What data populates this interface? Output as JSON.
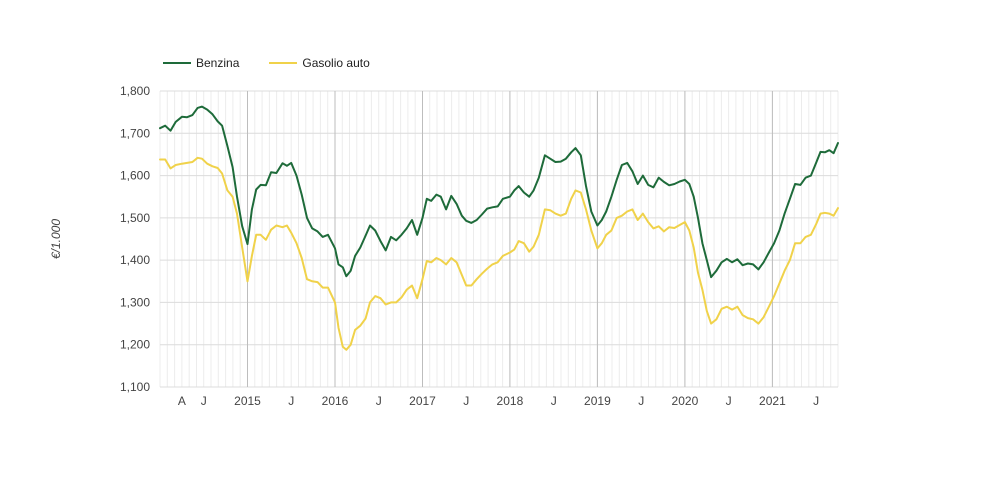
{
  "chart_data": {
    "type": "line",
    "title": "",
    "xlabel": "",
    "ylabel": "€/1.000",
    "ylim": [
      1.1,
      1.8
    ],
    "y_ticks": [
      "1,100",
      "1,200",
      "1,300",
      "1,400",
      "1,500",
      "1,600",
      "1,700",
      "1,800"
    ],
    "x_ticks": [
      {
        "label": "A",
        "x": 2014.25
      },
      {
        "label": "J",
        "x": 2014.5
      },
      {
        "label": "2015",
        "x": 2015.0
      },
      {
        "label": "J",
        "x": 2015.5
      },
      {
        "label": "2016",
        "x": 2016.0
      },
      {
        "label": "J",
        "x": 2016.5
      },
      {
        "label": "2017",
        "x": 2017.0
      },
      {
        "label": "J",
        "x": 2017.5
      },
      {
        "label": "2018",
        "x": 2018.0
      },
      {
        "label": "J",
        "x": 2018.5
      },
      {
        "label": "2019",
        "x": 2019.0
      },
      {
        "label": "J",
        "x": 2019.5
      },
      {
        "label": "2020",
        "x": 2020.0
      },
      {
        "label": "J",
        "x": 2020.5
      },
      {
        "label": "2021",
        "x": 2021.0
      },
      {
        "label": "J",
        "x": 2021.5
      }
    ],
    "xlim": [
      2014.0,
      2021.75
    ],
    "grid": true,
    "legend_position": "top-left",
    "series": [
      {
        "name": "Benzina",
        "color": "#1e6b3a",
        "points": [
          [
            2014.0,
            1.712
          ],
          [
            2014.06,
            1.718
          ],
          [
            2014.12,
            1.706
          ],
          [
            2014.18,
            1.727
          ],
          [
            2014.25,
            1.739
          ],
          [
            2014.31,
            1.738
          ],
          [
            2014.37,
            1.743
          ],
          [
            2014.43,
            1.76
          ],
          [
            2014.48,
            1.763
          ],
          [
            2014.54,
            1.756
          ],
          [
            2014.6,
            1.745
          ],
          [
            2014.66,
            1.728
          ],
          [
            2014.71,
            1.718
          ],
          [
            2014.77,
            1.67
          ],
          [
            2014.83,
            1.62
          ],
          [
            2014.88,
            1.55
          ],
          [
            2014.94,
            1.48
          ],
          [
            2015.0,
            1.438
          ],
          [
            2015.05,
            1.52
          ],
          [
            2015.1,
            1.567
          ],
          [
            2015.15,
            1.578
          ],
          [
            2015.21,
            1.577
          ],
          [
            2015.27,
            1.608
          ],
          [
            2015.33,
            1.606
          ],
          [
            2015.4,
            1.629
          ],
          [
            2015.45,
            1.623
          ],
          [
            2015.5,
            1.63
          ],
          [
            2015.56,
            1.6
          ],
          [
            2015.62,
            1.555
          ],
          [
            2015.68,
            1.5
          ],
          [
            2015.74,
            1.475
          ],
          [
            2015.8,
            1.468
          ],
          [
            2015.86,
            1.455
          ],
          [
            2015.92,
            1.46
          ],
          [
            2016.0,
            1.428
          ],
          [
            2016.04,
            1.39
          ],
          [
            2016.09,
            1.383
          ],
          [
            2016.13,
            1.362
          ],
          [
            2016.18,
            1.375
          ],
          [
            2016.23,
            1.41
          ],
          [
            2016.29,
            1.43
          ],
          [
            2016.35,
            1.458
          ],
          [
            2016.4,
            1.482
          ],
          [
            2016.46,
            1.47
          ],
          [
            2016.52,
            1.445
          ],
          [
            2016.58,
            1.423
          ],
          [
            2016.64,
            1.455
          ],
          [
            2016.7,
            1.447
          ],
          [
            2016.76,
            1.46
          ],
          [
            2016.82,
            1.475
          ],
          [
            2016.88,
            1.495
          ],
          [
            2016.94,
            1.46
          ],
          [
            2017.0,
            1.5
          ],
          [
            2017.05,
            1.545
          ],
          [
            2017.1,
            1.54
          ],
          [
            2017.16,
            1.555
          ],
          [
            2017.21,
            1.55
          ],
          [
            2017.27,
            1.52
          ],
          [
            2017.33,
            1.552
          ],
          [
            2017.39,
            1.533
          ],
          [
            2017.45,
            1.505
          ],
          [
            2017.5,
            1.493
          ],
          [
            2017.56,
            1.488
          ],
          [
            2017.62,
            1.495
          ],
          [
            2017.68,
            1.508
          ],
          [
            2017.74,
            1.522
          ],
          [
            2017.8,
            1.525
          ],
          [
            2017.86,
            1.527
          ],
          [
            2017.92,
            1.545
          ],
          [
            2018.0,
            1.55
          ],
          [
            2018.05,
            1.565
          ],
          [
            2018.1,
            1.575
          ],
          [
            2018.16,
            1.56
          ],
          [
            2018.22,
            1.55
          ],
          [
            2018.27,
            1.565
          ],
          [
            2018.33,
            1.595
          ],
          [
            2018.4,
            1.648
          ],
          [
            2018.46,
            1.64
          ],
          [
            2018.52,
            1.632
          ],
          [
            2018.58,
            1.633
          ],
          [
            2018.64,
            1.64
          ],
          [
            2018.7,
            1.655
          ],
          [
            2018.75,
            1.665
          ],
          [
            2018.81,
            1.648
          ],
          [
            2018.87,
            1.575
          ],
          [
            2018.93,
            1.515
          ],
          [
            2019.0,
            1.482
          ],
          [
            2019.05,
            1.495
          ],
          [
            2019.1,
            1.515
          ],
          [
            2019.16,
            1.55
          ],
          [
            2019.22,
            1.59
          ],
          [
            2019.28,
            1.625
          ],
          [
            2019.34,
            1.63
          ],
          [
            2019.4,
            1.61
          ],
          [
            2019.46,
            1.58
          ],
          [
            2019.52,
            1.6
          ],
          [
            2019.58,
            1.578
          ],
          [
            2019.64,
            1.572
          ],
          [
            2019.7,
            1.595
          ],
          [
            2019.76,
            1.585
          ],
          [
            2019.82,
            1.577
          ],
          [
            2019.88,
            1.58
          ],
          [
            2019.94,
            1.586
          ],
          [
            2020.0,
            1.59
          ],
          [
            2020.05,
            1.58
          ],
          [
            2020.1,
            1.55
          ],
          [
            2020.15,
            1.5
          ],
          [
            2020.2,
            1.44
          ],
          [
            2020.25,
            1.4
          ],
          [
            2020.3,
            1.36
          ],
          [
            2020.36,
            1.375
          ],
          [
            2020.42,
            1.395
          ],
          [
            2020.48,
            1.403
          ],
          [
            2020.54,
            1.395
          ],
          [
            2020.6,
            1.402
          ],
          [
            2020.66,
            1.388
          ],
          [
            2020.72,
            1.392
          ],
          [
            2020.78,
            1.39
          ],
          [
            2020.84,
            1.378
          ],
          [
            2020.9,
            1.395
          ],
          [
            2020.96,
            1.418
          ],
          [
            2021.02,
            1.44
          ],
          [
            2021.08,
            1.47
          ],
          [
            2021.14,
            1.51
          ],
          [
            2021.2,
            1.545
          ],
          [
            2021.26,
            1.58
          ],
          [
            2021.32,
            1.578
          ],
          [
            2021.38,
            1.595
          ],
          [
            2021.44,
            1.6
          ],
          [
            2021.5,
            1.63
          ],
          [
            2021.55,
            1.656
          ],
          [
            2021.6,
            1.655
          ],
          [
            2021.65,
            1.66
          ],
          [
            2021.7,
            1.653
          ],
          [
            2021.75,
            1.677
          ]
        ]
      },
      {
        "name": "Gasolio auto",
        "color": "#f0d24a",
        "points": [
          [
            2014.0,
            1.638
          ],
          [
            2014.06,
            1.638
          ],
          [
            2014.12,
            1.617
          ],
          [
            2014.18,
            1.625
          ],
          [
            2014.25,
            1.628
          ],
          [
            2014.31,
            1.63
          ],
          [
            2014.37,
            1.632
          ],
          [
            2014.43,
            1.642
          ],
          [
            2014.48,
            1.64
          ],
          [
            2014.54,
            1.628
          ],
          [
            2014.6,
            1.622
          ],
          [
            2014.66,
            1.618
          ],
          [
            2014.71,
            1.605
          ],
          [
            2014.77,
            1.565
          ],
          [
            2014.83,
            1.55
          ],
          [
            2014.88,
            1.51
          ],
          [
            2014.94,
            1.43
          ],
          [
            2015.0,
            1.35
          ],
          [
            2015.05,
            1.41
          ],
          [
            2015.1,
            1.46
          ],
          [
            2015.15,
            1.46
          ],
          [
            2015.21,
            1.448
          ],
          [
            2015.27,
            1.472
          ],
          [
            2015.33,
            1.482
          ],
          [
            2015.4,
            1.478
          ],
          [
            2015.45,
            1.482
          ],
          [
            2015.5,
            1.465
          ],
          [
            2015.56,
            1.44
          ],
          [
            2015.62,
            1.405
          ],
          [
            2015.68,
            1.355
          ],
          [
            2015.74,
            1.35
          ],
          [
            2015.8,
            1.348
          ],
          [
            2015.86,
            1.335
          ],
          [
            2015.92,
            1.335
          ],
          [
            2016.0,
            1.3
          ],
          [
            2016.04,
            1.24
          ],
          [
            2016.09,
            1.195
          ],
          [
            2016.13,
            1.188
          ],
          [
            2016.18,
            1.2
          ],
          [
            2016.23,
            1.235
          ],
          [
            2016.29,
            1.245
          ],
          [
            2016.35,
            1.262
          ],
          [
            2016.4,
            1.3
          ],
          [
            2016.46,
            1.315
          ],
          [
            2016.52,
            1.31
          ],
          [
            2016.58,
            1.295
          ],
          [
            2016.64,
            1.3
          ],
          [
            2016.7,
            1.3
          ],
          [
            2016.76,
            1.312
          ],
          [
            2016.82,
            1.33
          ],
          [
            2016.88,
            1.34
          ],
          [
            2016.94,
            1.31
          ],
          [
            2017.0,
            1.355
          ],
          [
            2017.05,
            1.398
          ],
          [
            2017.1,
            1.395
          ],
          [
            2017.16,
            1.405
          ],
          [
            2017.21,
            1.4
          ],
          [
            2017.27,
            1.39
          ],
          [
            2017.33,
            1.405
          ],
          [
            2017.39,
            1.395
          ],
          [
            2017.45,
            1.365
          ],
          [
            2017.5,
            1.34
          ],
          [
            2017.56,
            1.34
          ],
          [
            2017.62,
            1.355
          ],
          [
            2017.68,
            1.368
          ],
          [
            2017.74,
            1.38
          ],
          [
            2017.8,
            1.39
          ],
          [
            2017.86,
            1.395
          ],
          [
            2017.92,
            1.41
          ],
          [
            2018.0,
            1.418
          ],
          [
            2018.05,
            1.425
          ],
          [
            2018.1,
            1.445
          ],
          [
            2018.16,
            1.44
          ],
          [
            2018.22,
            1.42
          ],
          [
            2018.27,
            1.432
          ],
          [
            2018.33,
            1.46
          ],
          [
            2018.4,
            1.52
          ],
          [
            2018.46,
            1.518
          ],
          [
            2018.52,
            1.51
          ],
          [
            2018.58,
            1.505
          ],
          [
            2018.64,
            1.51
          ],
          [
            2018.7,
            1.545
          ],
          [
            2018.75,
            1.565
          ],
          [
            2018.81,
            1.56
          ],
          [
            2018.87,
            1.52
          ],
          [
            2018.93,
            1.47
          ],
          [
            2019.0,
            1.428
          ],
          [
            2019.05,
            1.44
          ],
          [
            2019.1,
            1.46
          ],
          [
            2019.16,
            1.47
          ],
          [
            2019.22,
            1.5
          ],
          [
            2019.28,
            1.505
          ],
          [
            2019.34,
            1.515
          ],
          [
            2019.4,
            1.52
          ],
          [
            2019.46,
            1.495
          ],
          [
            2019.52,
            1.51
          ],
          [
            2019.58,
            1.49
          ],
          [
            2019.64,
            1.475
          ],
          [
            2019.7,
            1.48
          ],
          [
            2019.76,
            1.468
          ],
          [
            2019.82,
            1.478
          ],
          [
            2019.88,
            1.476
          ],
          [
            2019.94,
            1.483
          ],
          [
            2020.0,
            1.49
          ],
          [
            2020.05,
            1.47
          ],
          [
            2020.1,
            1.43
          ],
          [
            2020.15,
            1.37
          ],
          [
            2020.2,
            1.33
          ],
          [
            2020.25,
            1.28
          ],
          [
            2020.3,
            1.25
          ],
          [
            2020.36,
            1.26
          ],
          [
            2020.42,
            1.285
          ],
          [
            2020.48,
            1.29
          ],
          [
            2020.54,
            1.283
          ],
          [
            2020.6,
            1.29
          ],
          [
            2020.66,
            1.27
          ],
          [
            2020.72,
            1.263
          ],
          [
            2020.78,
            1.26
          ],
          [
            2020.84,
            1.25
          ],
          [
            2020.9,
            1.265
          ],
          [
            2020.96,
            1.29
          ],
          [
            2021.02,
            1.315
          ],
          [
            2021.08,
            1.345
          ],
          [
            2021.14,
            1.375
          ],
          [
            2021.2,
            1.4
          ],
          [
            2021.26,
            1.44
          ],
          [
            2021.32,
            1.44
          ],
          [
            2021.38,
            1.455
          ],
          [
            2021.44,
            1.46
          ],
          [
            2021.5,
            1.485
          ],
          [
            2021.55,
            1.51
          ],
          [
            2021.6,
            1.512
          ],
          [
            2021.65,
            1.51
          ],
          [
            2021.7,
            1.505
          ],
          [
            2021.75,
            1.523
          ]
        ]
      }
    ]
  }
}
